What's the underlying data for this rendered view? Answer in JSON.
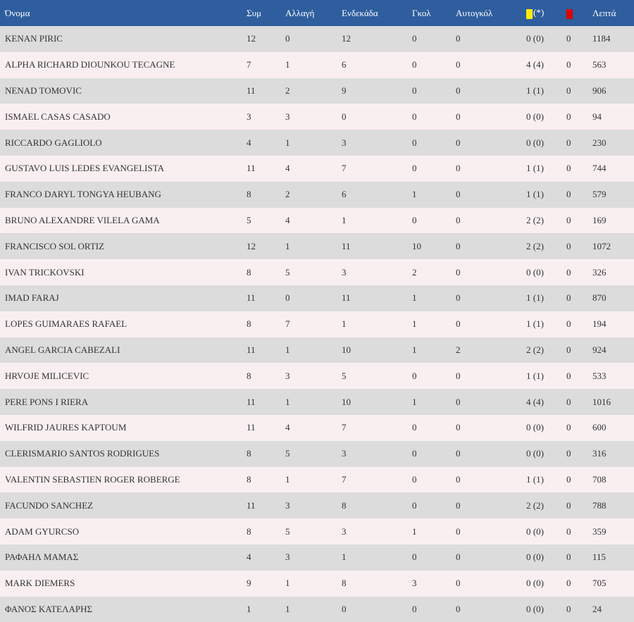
{
  "colors": {
    "header_bg": "#2e5e9e",
    "row_odd": "#dcdcdc",
    "row_even": "#f9eff1",
    "yellow_card": "#ffee00",
    "red_card": "#dd0000"
  },
  "header": {
    "name": "Όνομα",
    "apps": "Συμ",
    "subs": "Αλλαγή",
    "starts": "Ενδεκάδα",
    "goals": "Γκολ",
    "own_goals": "Αυτογκόλ",
    "yellow_suffix": "(*)",
    "minutes": "Λεπτά"
  },
  "rows": [
    [
      "KENAN PIRIC",
      "12",
      "0",
      "12",
      "0",
      "0",
      "0 (0)",
      "0",
      "1184"
    ],
    [
      "ALPHA RICHARD DIOUNKOU TECAGNE",
      "7",
      "1",
      "6",
      "0",
      "0",
      "4 (4)",
      "0",
      "563"
    ],
    [
      "NENAD TOMOVIC",
      "11",
      "2",
      "9",
      "0",
      "0",
      "1 (1)",
      "0",
      "906"
    ],
    [
      "ISMAEL CASAS CASADO",
      "3",
      "3",
      "0",
      "0",
      "0",
      "0 (0)",
      "0",
      "94"
    ],
    [
      "RICCARDO GAGLIOLO",
      "4",
      "1",
      "3",
      "0",
      "0",
      "0 (0)",
      "0",
      "230"
    ],
    [
      "GUSTAVO LUIS LEDES EVANGELISTA",
      "11",
      "4",
      "7",
      "0",
      "0",
      "1 (1)",
      "0",
      "744"
    ],
    [
      "FRANCO DARYL TONGYA HEUBANG",
      "8",
      "2",
      "6",
      "1",
      "0",
      "1 (1)",
      "0",
      "579"
    ],
    [
      "BRUNO ALEXANDRE VILELA GAMA",
      "5",
      "4",
      "1",
      "0",
      "0",
      "2 (2)",
      "0",
      "169"
    ],
    [
      "FRANCISCO SOL ORTIZ",
      "12",
      "1",
      "11",
      "10",
      "0",
      "2 (2)",
      "0",
      "1072"
    ],
    [
      "IVAN TRICKOVSKI",
      "8",
      "5",
      "3",
      "2",
      "0",
      "0 (0)",
      "0",
      "326"
    ],
    [
      "IMAD FARAJ",
      "11",
      "0",
      "11",
      "1",
      "0",
      "1 (1)",
      "0",
      "870"
    ],
    [
      "LOPES GUIMARAES RAFAEL",
      "8",
      "7",
      "1",
      "1",
      "0",
      "1 (1)",
      "0",
      "194"
    ],
    [
      "ANGEL GARCIA CABEZALI",
      "11",
      "1",
      "10",
      "1",
      "2",
      "2 (2)",
      "0",
      "924"
    ],
    [
      "HRVOJE MILICEVIC",
      "8",
      "3",
      "5",
      "0",
      "0",
      "1 (1)",
      "0",
      "533"
    ],
    [
      "PERE PONS I RIERA",
      "11",
      "1",
      "10",
      "1",
      "0",
      "4 (4)",
      "0",
      "1016"
    ],
    [
      "WILFRID JAURES KAPTOUM",
      "11",
      "4",
      "7",
      "0",
      "0",
      "0 (0)",
      "0",
      "600"
    ],
    [
      "CLERISMARIO SANTOS RODRIGUES",
      "8",
      "5",
      "3",
      "0",
      "0",
      "0 (0)",
      "0",
      "316"
    ],
    [
      "VALENTIN SEBASTIEN ROGER ROBERGE",
      "8",
      "1",
      "7",
      "0",
      "0",
      "1 (1)",
      "0",
      "708"
    ],
    [
      "FACUNDO SANCHEZ",
      "11",
      "3",
      "8",
      "0",
      "0",
      "2 (2)",
      "0",
      "788"
    ],
    [
      "ADAM GYURCSO",
      "8",
      "5",
      "3",
      "1",
      "0",
      "0 (0)",
      "0",
      "359"
    ],
    [
      "ΡΑΦΑΗΛ ΜΑΜΑΣ",
      "4",
      "3",
      "1",
      "0",
      "0",
      "0 (0)",
      "0",
      "115"
    ],
    [
      "MARK DIEMERS",
      "9",
      "1",
      "8",
      "3",
      "0",
      "0 (0)",
      "0",
      "705"
    ],
    [
      "ΦΑΝΟΣ ΚΑΤΕΛΑΡΗΣ",
      "1",
      "1",
      "0",
      "0",
      "0",
      "0 (0)",
      "0",
      "24"
    ]
  ]
}
